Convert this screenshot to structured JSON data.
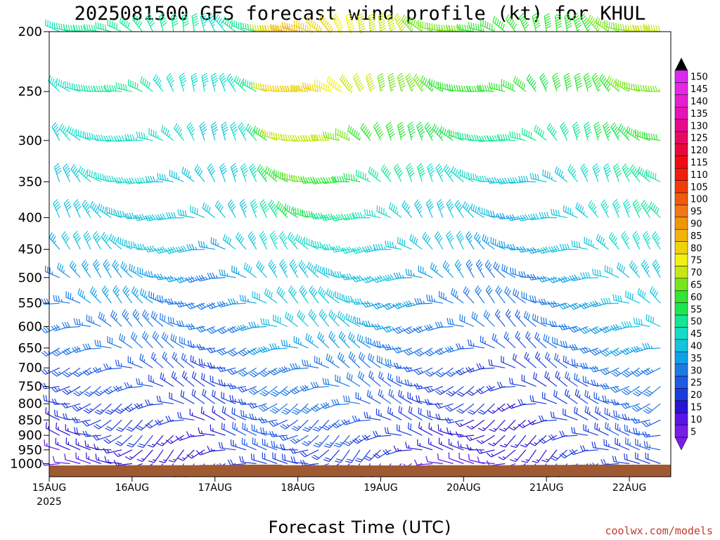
{
  "chart_data": {
    "type": "wind-profile",
    "title": "2025081500 GFS forecast wind profile (kt) for KHUL",
    "xlabel": "Forecast Time (UTC)",
    "ylabel": "",
    "credit": "coolwx.com/models",
    "x_ticks": [
      {
        "label": "15AUG",
        "sublabel": "2025",
        "hour": 0
      },
      {
        "label": "16AUG",
        "sublabel": "",
        "hour": 24
      },
      {
        "label": "17AUG",
        "sublabel": "",
        "hour": 48
      },
      {
        "label": "18AUG",
        "sublabel": "",
        "hour": 72
      },
      {
        "label": "19AUG",
        "sublabel": "",
        "hour": 96
      },
      {
        "label": "20AUG",
        "sublabel": "",
        "hour": 120
      },
      {
        "label": "21AUG",
        "sublabel": "",
        "hour": 144
      },
      {
        "label": "22AUG",
        "sublabel": "",
        "hour": 168
      }
    ],
    "x_range_hours": [
      0,
      180
    ],
    "x_step_hours": 3,
    "y_ticks_hpa": [
      200,
      250,
      300,
      350,
      400,
      450,
      500,
      550,
      600,
      650,
      700,
      750,
      800,
      850,
      900,
      950,
      1000
    ],
    "y_range_hpa": [
      200,
      1050
    ],
    "y_scale": "log",
    "colorbar": {
      "levels": [
        5,
        10,
        15,
        20,
        25,
        30,
        35,
        40,
        45,
        50,
        55,
        60,
        65,
        70,
        75,
        80,
        85,
        90,
        95,
        100,
        105,
        110,
        115,
        120,
        125,
        130,
        135,
        140,
        145,
        150
      ],
      "colors": [
        "#7a1ee6",
        "#5a14e6",
        "#2814d2",
        "#1e3cdc",
        "#1e5ae6",
        "#1e78e6",
        "#0fa0e6",
        "#14c3dc",
        "#14dcc8",
        "#14e696",
        "#1ee650",
        "#32e632",
        "#78e61e",
        "#c8e614",
        "#f0f014",
        "#f0d20a",
        "#f0b40a",
        "#f0960a",
        "#f07814",
        "#f05a0a",
        "#f03c0a",
        "#f01e0a",
        "#f00a14",
        "#e60a3c",
        "#e60a64",
        "#e60a8c",
        "#e614b4",
        "#e61ed2",
        "#e628e6",
        "#dc28f0"
      ]
    },
    "grid": false,
    "levels_hpa": [
      1000,
      950,
      900,
      850,
      800,
      750,
      700,
      650,
      600,
      550,
      500,
      450,
      400,
      350,
      300,
      250,
      200
    ],
    "terrain_color": "#a05a32",
    "surface_pressure_hpa": [
      1007,
      1007,
      1007,
      1007,
      1006,
      1006,
      1006,
      1006,
      1006,
      1006,
      1006,
      1006,
      1006,
      1006,
      1006,
      1005,
      1005,
      1005,
      1004,
      1004,
      1004,
      1004,
      1004,
      1006,
      1006,
      1006,
      1006,
      1006,
      1006,
      1006,
      1007,
      1007,
      1007,
      1007,
      1007,
      1007,
      1007,
      1006,
      1006,
      1006,
      1006,
      1006,
      1006,
      1006,
      1006,
      1006,
      1005,
      1005,
      1005,
      1005,
      1005,
      1004,
      1004,
      1004,
      1004,
      1004,
      1004,
      1004,
      1004,
      1004,
      1004
    ],
    "wind_speed_kt": [
      [
        10,
        10,
        10,
        12,
        14,
        15,
        15,
        15,
        15,
        15,
        15,
        12,
        12,
        12,
        12,
        12,
        14,
        18,
        20,
        20,
        22,
        22,
        22,
        22,
        20,
        20,
        20,
        20,
        18,
        18,
        18,
        18,
        16,
        16,
        16,
        14,
        14,
        12,
        12,
        12,
        12,
        12,
        12,
        12,
        12,
        14,
        14,
        14,
        14,
        16,
        18,
        18,
        18,
        20,
        20,
        20,
        20,
        22,
        22,
        22,
        22
      ],
      [
        14,
        14,
        15,
        16,
        18,
        18,
        18,
        18,
        18,
        18,
        18,
        16,
        16,
        16,
        15,
        15,
        16,
        18,
        20,
        24,
        25,
        25,
        25,
        25,
        22,
        22,
        22,
        22,
        22,
        22,
        22,
        22,
        20,
        20,
        20,
        18,
        18,
        16,
        15,
        15,
        15,
        15,
        15,
        15,
        15,
        15,
        16,
        16,
        18,
        18,
        20,
        20,
        20,
        22,
        22,
        24,
        24,
        25,
        25,
        25,
        25
      ],
      [
        16,
        16,
        18,
        18,
        20,
        20,
        20,
        20,
        20,
        20,
        20,
        18,
        18,
        18,
        18,
        16,
        16,
        18,
        20,
        25,
        26,
        26,
        26,
        26,
        26,
        25,
        25,
        25,
        25,
        25,
        25,
        24,
        22,
        22,
        22,
        20,
        20,
        18,
        18,
        18,
        18,
        18,
        16,
        16,
        16,
        16,
        16,
        18,
        18,
        20,
        20,
        22,
        22,
        24,
        24,
        26,
        26,
        26,
        26,
        26,
        26
      ],
      [
        18,
        18,
        20,
        20,
        22,
        22,
        22,
        22,
        22,
        22,
        22,
        20,
        20,
        20,
        20,
        18,
        18,
        18,
        20,
        22,
        25,
        26,
        26,
        28,
        28,
        28,
        28,
        28,
        28,
        28,
        28,
        26,
        24,
        24,
        24,
        22,
        22,
        20,
        20,
        20,
        20,
        18,
        18,
        18,
        18,
        18,
        18,
        18,
        18,
        20,
        22,
        22,
        22,
        24,
        24,
        26,
        26,
        28,
        28,
        28,
        28
      ],
      [
        20,
        20,
        22,
        22,
        24,
        24,
        24,
        24,
        24,
        24,
        24,
        22,
        22,
        22,
        22,
        20,
        20,
        20,
        22,
        24,
        26,
        28,
        30,
        30,
        30,
        30,
        30,
        30,
        30,
        30,
        30,
        28,
        26,
        26,
        26,
        24,
        24,
        22,
        22,
        22,
        22,
        20,
        20,
        20,
        18,
        18,
        18,
        20,
        20,
        22,
        22,
        24,
        24,
        26,
        26,
        28,
        28,
        30,
        30,
        30,
        30
      ],
      [
        22,
        22,
        24,
        24,
        26,
        26,
        26,
        26,
        26,
        26,
        26,
        24,
        24,
        24,
        24,
        22,
        22,
        22,
        24,
        26,
        28,
        30,
        32,
        32,
        32,
        32,
        32,
        32,
        32,
        32,
        32,
        30,
        28,
        28,
        28,
        26,
        26,
        24,
        24,
        24,
        24,
        22,
        22,
        22,
        20,
        20,
        20,
        22,
        22,
        24,
        24,
        26,
        26,
        28,
        28,
        30,
        30,
        32,
        32,
        32,
        32
      ],
      [
        24,
        24,
        26,
        26,
        28,
        28,
        28,
        28,
        28,
        28,
        28,
        26,
        26,
        26,
        26,
        24,
        24,
        24,
        26,
        28,
        30,
        32,
        34,
        34,
        34,
        34,
        34,
        34,
        34,
        34,
        34,
        32,
        30,
        30,
        30,
        28,
        28,
        26,
        26,
        26,
        26,
        24,
        24,
        24,
        22,
        22,
        22,
        24,
        24,
        26,
        26,
        28,
        28,
        30,
        30,
        32,
        32,
        34,
        34,
        34,
        34
      ],
      [
        28,
        28,
        30,
        30,
        32,
        32,
        32,
        32,
        32,
        32,
        32,
        30,
        30,
        30,
        30,
        28,
        28,
        28,
        30,
        32,
        34,
        36,
        38,
        38,
        38,
        38,
        38,
        38,
        38,
        38,
        38,
        36,
        34,
        34,
        34,
        32,
        32,
        30,
        30,
        30,
        30,
        28,
        28,
        28,
        26,
        26,
        26,
        28,
        28,
        30,
        30,
        32,
        32,
        34,
        34,
        36,
        36,
        38,
        38,
        38,
        38
      ],
      [
        30,
        30,
        32,
        32,
        34,
        34,
        34,
        34,
        34,
        34,
        34,
        32,
        32,
        32,
        32,
        30,
        30,
        30,
        32,
        34,
        36,
        38,
        40,
        40,
        40,
        40,
        40,
        40,
        40,
        40,
        40,
        38,
        36,
        36,
        36,
        34,
        34,
        32,
        32,
        32,
        32,
        30,
        30,
        30,
        28,
        28,
        28,
        30,
        30,
        32,
        32,
        34,
        34,
        36,
        36,
        38,
        38,
        40,
        40,
        40,
        40
      ],
      [
        32,
        32,
        34,
        34,
        36,
        36,
        36,
        36,
        36,
        36,
        36,
        34,
        34,
        34,
        34,
        32,
        32,
        32,
        34,
        36,
        38,
        40,
        42,
        42,
        42,
        42,
        42,
        42,
        42,
        42,
        42,
        40,
        38,
        38,
        38,
        36,
        36,
        34,
        34,
        34,
        34,
        32,
        32,
        32,
        30,
        30,
        30,
        32,
        32,
        34,
        34,
        36,
        36,
        38,
        38,
        40,
        40,
        42,
        42,
        42,
        42
      ],
      [
        34,
        34,
        36,
        36,
        38,
        38,
        38,
        38,
        38,
        38,
        38,
        36,
        36,
        36,
        36,
        34,
        34,
        34,
        36,
        38,
        40,
        42,
        44,
        44,
        44,
        44,
        44,
        44,
        44,
        44,
        44,
        42,
        40,
        40,
        40,
        38,
        38,
        36,
        36,
        36,
        36,
        34,
        34,
        34,
        32,
        32,
        32,
        34,
        34,
        36,
        36,
        38,
        38,
        40,
        40,
        42,
        42,
        44,
        44,
        44,
        44
      ],
      [
        38,
        38,
        40,
        40,
        42,
        42,
        42,
        42,
        42,
        42,
        42,
        40,
        40,
        40,
        40,
        38,
        38,
        38,
        40,
        42,
        44,
        46,
        48,
        48,
        48,
        48,
        48,
        48,
        48,
        48,
        48,
        46,
        44,
        44,
        44,
        42,
        42,
        40,
        40,
        40,
        40,
        38,
        38,
        38,
        36,
        36,
        36,
        38,
        38,
        40,
        40,
        42,
        42,
        44,
        44,
        46,
        46,
        48,
        48,
        48,
        48
      ],
      [
        40,
        40,
        42,
        42,
        44,
        44,
        44,
        44,
        44,
        44,
        44,
        42,
        42,
        42,
        42,
        40,
        40,
        40,
        42,
        44,
        46,
        50,
        54,
        56,
        58,
        58,
        56,
        54,
        52,
        50,
        50,
        48,
        46,
        46,
        46,
        44,
        44,
        42,
        42,
        42,
        42,
        40,
        40,
        40,
        38,
        38,
        38,
        40,
        40,
        42,
        42,
        44,
        44,
        46,
        46,
        48,
        48,
        50,
        50,
        50,
        50
      ],
      [
        42,
        42,
        44,
        44,
        46,
        46,
        46,
        46,
        46,
        46,
        46,
        44,
        44,
        44,
        44,
        42,
        42,
        42,
        44,
        46,
        48,
        55,
        62,
        64,
        66,
        66,
        64,
        62,
        60,
        58,
        56,
        54,
        52,
        52,
        52,
        50,
        50,
        48,
        48,
        48,
        48,
        46,
        46,
        46,
        44,
        44,
        44,
        42,
        42,
        44,
        44,
        46,
        46,
        48,
        48,
        50,
        50,
        52,
        52,
        52,
        52
      ],
      [
        44,
        44,
        46,
        46,
        48,
        48,
        48,
        48,
        48,
        48,
        48,
        46,
        46,
        46,
        46,
        44,
        44,
        44,
        46,
        48,
        50,
        60,
        70,
        72,
        74,
        74,
        72,
        70,
        68,
        66,
        64,
        62,
        60,
        60,
        60,
        58,
        58,
        56,
        56,
        56,
        56,
        54,
        54,
        54,
        52,
        52,
        52,
        50,
        50,
        52,
        52,
        54,
        54,
        56,
        56,
        58,
        58,
        60,
        60,
        60,
        60
      ],
      [
        46,
        46,
        48,
        48,
        50,
        50,
        50,
        50,
        50,
        50,
        50,
        48,
        48,
        48,
        48,
        46,
        46,
        46,
        48,
        50,
        52,
        70,
        82,
        84,
        84,
        82,
        80,
        78,
        76,
        74,
        72,
        70,
        68,
        68,
        68,
        66,
        66,
        64,
        64,
        64,
        64,
        62,
        62,
        62,
        60,
        60,
        60,
        58,
        58,
        60,
        60,
        62,
        62,
        64,
        64,
        66,
        66,
        68,
        68,
        68,
        68
      ],
      [
        48,
        48,
        50,
        50,
        52,
        52,
        52,
        52,
        52,
        52,
        52,
        50,
        50,
        50,
        50,
        48,
        48,
        48,
        50,
        52,
        54,
        72,
        84,
        86,
        86,
        84,
        82,
        80,
        78,
        76,
        74,
        72,
        70,
        70,
        70,
        68,
        68,
        66,
        66,
        66,
        66,
        64,
        64,
        64,
        62,
        62,
        62,
        60,
        60,
        62,
        62,
        64,
        64,
        66,
        66,
        68,
        68,
        70,
        70,
        70,
        70
      ]
    ]
  }
}
